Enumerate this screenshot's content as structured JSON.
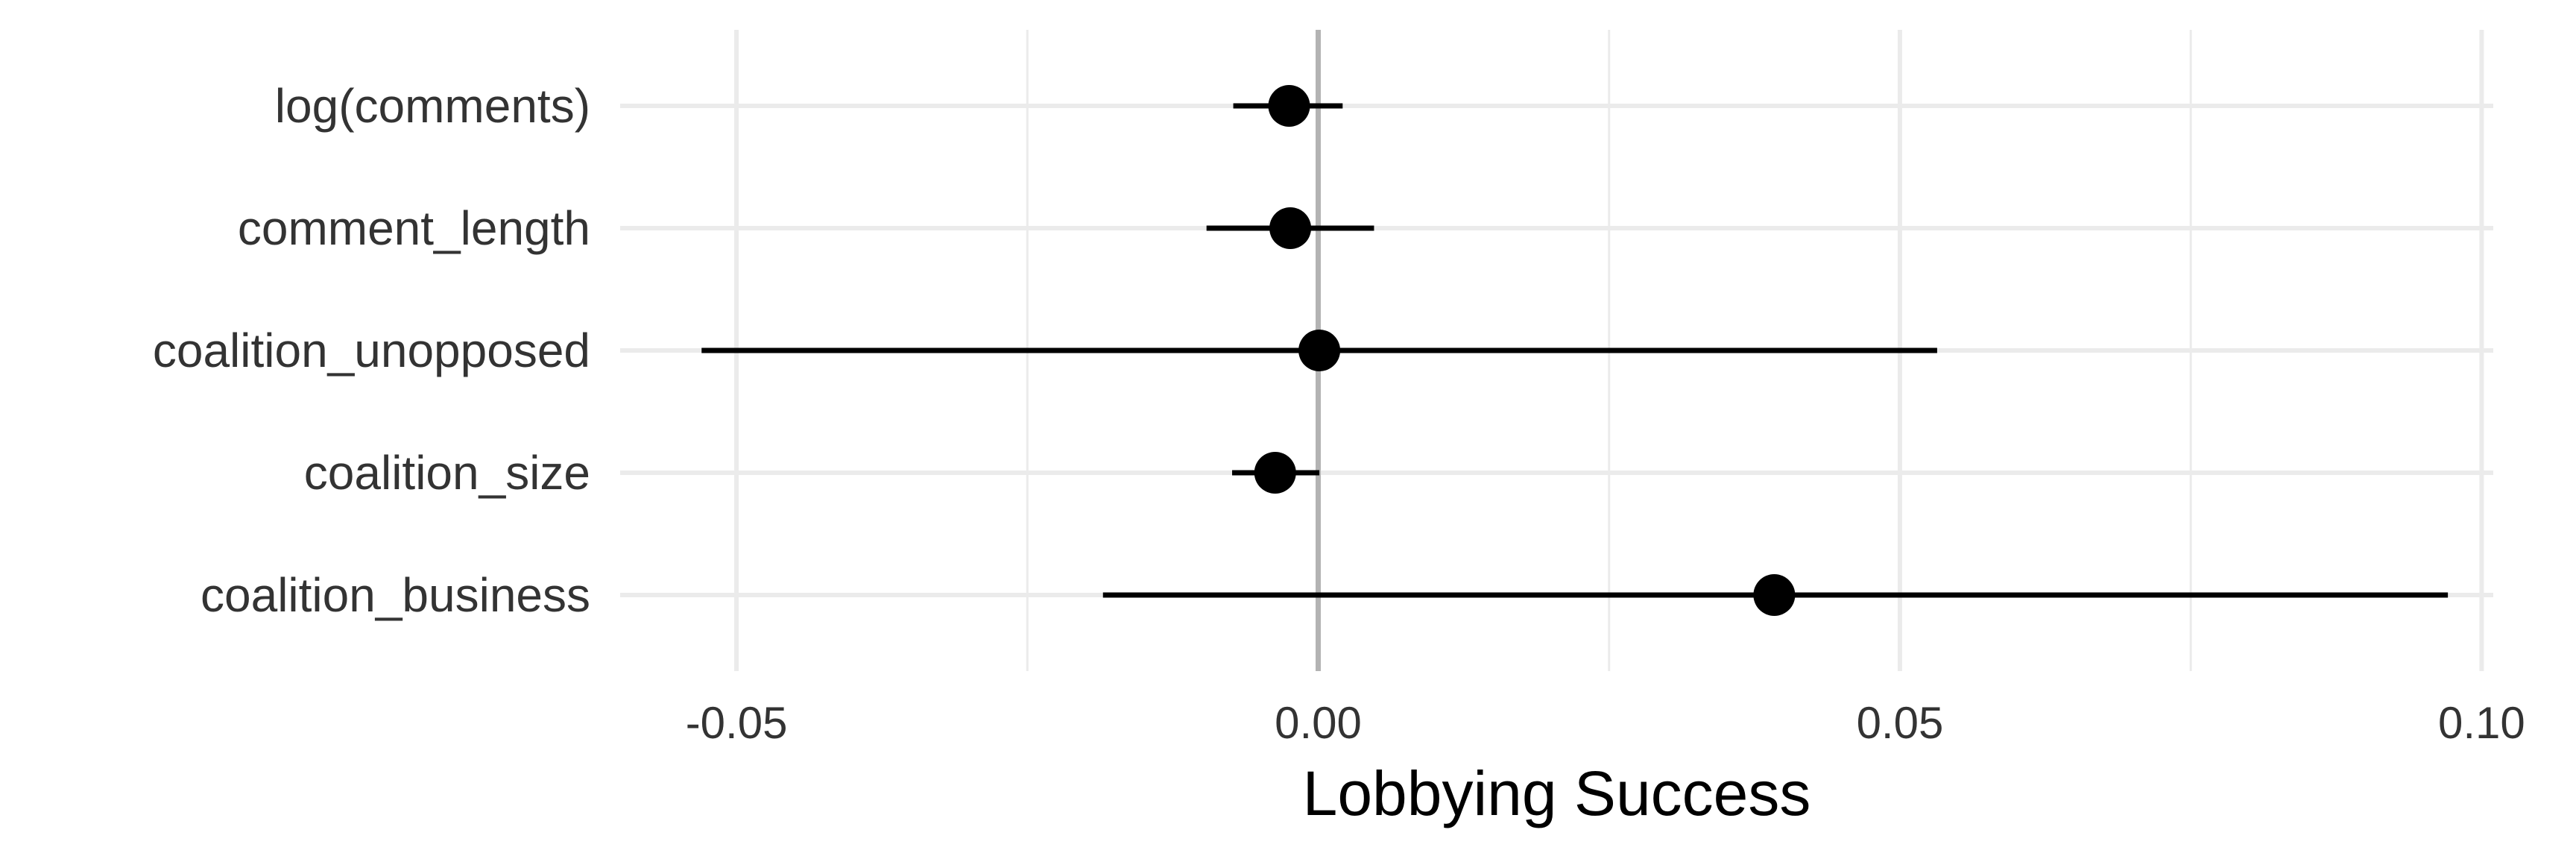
{
  "chart_data": {
    "type": "coefficient-plot",
    "title": "",
    "xlabel": "Lobbying Success",
    "ylabel": "",
    "xlim": [
      -0.06,
      0.101
    ],
    "x_ticks": [
      -0.05,
      0.0,
      0.05,
      0.1
    ],
    "x_tick_labels": [
      "-0.05",
      "0.00",
      "0.05",
      "0.10"
    ],
    "x_minor_ticks": [
      -0.025,
      0.025,
      0.075
    ],
    "reference_line": 0,
    "grid": true,
    "series": [
      {
        "name": "estimate",
        "points": [
          {
            "label": "log(comments)",
            "estimate": -0.0025,
            "low": -0.0073,
            "high": 0.0021
          },
          {
            "label": "comment_length",
            "estimate": -0.0024,
            "low": -0.0096,
            "high": 0.0048
          },
          {
            "label": "coalition_unopposed",
            "estimate": 0.0001,
            "low": -0.053,
            "high": 0.0532
          },
          {
            "label": "coalition_size",
            "estimate": -0.0037,
            "low": -0.0074,
            "high": 0.0001
          },
          {
            "label": "coalition_business",
            "estimate": 0.0392,
            "low": -0.0185,
            "high": 0.0971
          }
        ]
      }
    ]
  },
  "colors": {
    "background": "#ffffff",
    "grid": "#ebebeb",
    "reference_line": "#b3b3b3",
    "point": "#000000",
    "interval": "#000000",
    "tick_text": "#333333"
  }
}
